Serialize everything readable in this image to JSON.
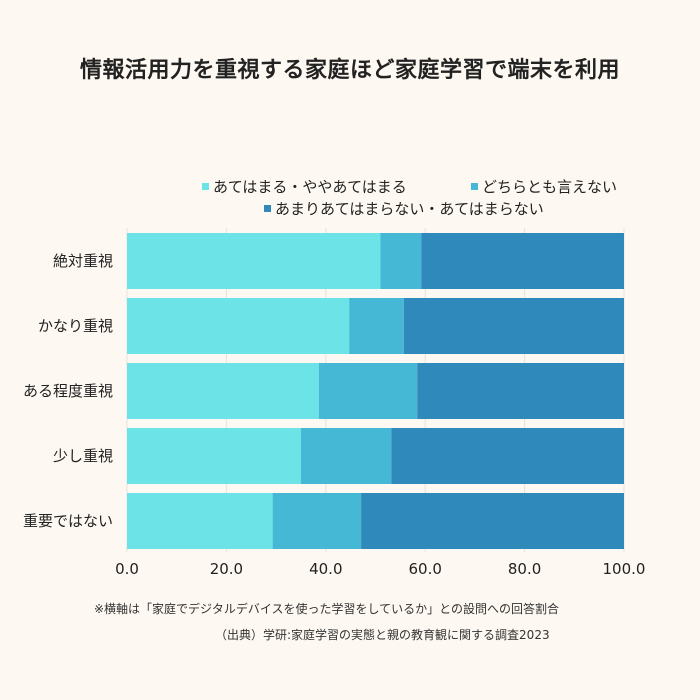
{
  "chart_data": {
    "type": "bar",
    "orientation": "horizontal",
    "stacked": true,
    "title": "情報活用力を重視する家庭ほど家庭学習で端末を利用",
    "categories": [
      "絶対重視",
      "かなり重視",
      "ある程度重視",
      "少し重視",
      "重要ではない"
    ],
    "series": [
      {
        "name": "あてはまる・ややあてはまる",
        "color": "#6ce3e6",
        "values": [
          51.0,
          44.7,
          38.6,
          35.0,
          29.3
        ]
      },
      {
        "name": "どちらとも言えない",
        "color": "#45b8d6",
        "values": [
          8.2,
          11.0,
          19.8,
          18.2,
          17.8
        ]
      },
      {
        "name": "あまりあてはまらない・あてはまらない",
        "color": "#3089bb",
        "values": [
          40.8,
          44.3,
          41.6,
          46.8,
          52.9
        ]
      }
    ],
    "xlim": [
      0,
      100
    ],
    "x_ticks": [
      "0.0",
      "20.0",
      "40.0",
      "60.0",
      "80.0",
      "100.0"
    ],
    "grid": true,
    "legend_position": "top"
  },
  "notes": {
    "note1": "※横軸は「家庭でデジタルデバイスを使った学習をしているか」との設問への回答割合",
    "note2": "（出典）学研:家庭学習の実態と親の教育観に関する調査2023"
  }
}
